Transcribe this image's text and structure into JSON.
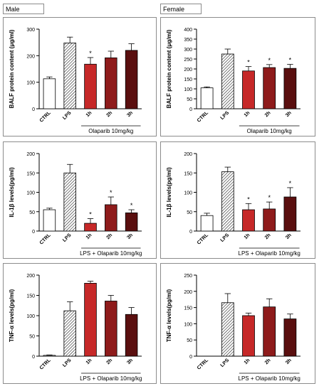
{
  "labels": {
    "male": "Male",
    "female": "Female"
  },
  "colors": {
    "ctrl": "#ffffff",
    "lps_hatch": "#222222",
    "h1": "#c62828",
    "h2": "#8e1b1b",
    "h3": "#5a0f0f",
    "axis": "#000000"
  },
  "chart_data": [
    {
      "type": "bar",
      "panel": "male-balf",
      "ylabel": "BALF protein content (μg/ml)",
      "ylim": [
        0,
        300
      ],
      "yticks": [
        0,
        100,
        200,
        300
      ],
      "categories": [
        "CTRL",
        "LPS",
        "1h",
        "2h",
        "3h"
      ],
      "values": [
        113,
        248,
        168,
        192,
        220
      ],
      "errors": [
        7,
        22,
        25,
        25,
        25
      ],
      "significance": [
        "",
        "",
        "*",
        "",
        ""
      ],
      "group_label": "Olaparib 10mg/kg"
    },
    {
      "type": "bar",
      "panel": "female-balf",
      "ylabel": "BALF protein content (μg/ml)",
      "ylim": [
        0,
        400
      ],
      "yticks": [
        0,
        50,
        100,
        150,
        200,
        250,
        300,
        350,
        400
      ],
      "categories": [
        "CTRL",
        "LPS",
        "1h",
        "2h",
        "3h"
      ],
      "values": [
        105,
        275,
        190,
        207,
        203
      ],
      "errors": [
        5,
        25,
        22,
        15,
        20
      ],
      "significance": [
        "",
        "",
        "*",
        "*",
        "*"
      ],
      "group_label": "Olaparib 10mg/kg"
    },
    {
      "type": "bar",
      "panel": "male-il1b",
      "ylabel": "IL-1β levels(pg/ml)",
      "ylim": [
        0,
        200
      ],
      "yticks": [
        0,
        50,
        100,
        150,
        200
      ],
      "categories": [
        "CTRL",
        "LPS",
        "1h",
        "2h",
        "3h"
      ],
      "values": [
        55,
        150,
        20,
        68,
        47
      ],
      "errors": [
        4,
        22,
        12,
        20,
        8
      ],
      "significance": [
        "",
        "",
        "*",
        "*",
        "*"
      ],
      "group_label": "LPS + Olaparib 10mg/kg"
    },
    {
      "type": "bar",
      "panel": "female-il1b",
      "ylabel": "IL-1β levels(pg/ml)",
      "ylim": [
        0,
        200
      ],
      "yticks": [
        0,
        50,
        100,
        150,
        200
      ],
      "categories": [
        "CTRL",
        "LPS",
        "1h",
        "2h",
        "3h"
      ],
      "values": [
        40,
        153,
        55,
        57,
        88
      ],
      "errors": [
        6,
        12,
        16,
        18,
        24
      ],
      "significance": [
        "",
        "",
        "*",
        "*",
        "*"
      ],
      "group_label": "LPS + Olaparib 10mg/kg"
    },
    {
      "type": "bar",
      "panel": "male-tnf",
      "ylabel": "TNF-α levels(pg/ml)",
      "ylim": [
        0,
        200
      ],
      "yticks": [
        0,
        50,
        100,
        150,
        200
      ],
      "categories": [
        "CTRL",
        "LPS",
        "1h",
        "2h",
        "3h"
      ],
      "values": [
        2,
        112,
        180,
        136,
        103
      ],
      "errors": [
        1,
        22,
        5,
        14,
        17
      ],
      "significance": [
        "",
        "",
        "",
        "",
        ""
      ],
      "group_label": "LPS + Olaparib 10mg/kg"
    },
    {
      "type": "bar",
      "panel": "female-tnf",
      "ylabel": "TNF-α levels(pg/ml)",
      "ylim": [
        0,
        250
      ],
      "yticks": [
        0,
        50,
        100,
        150,
        200,
        250
      ],
      "categories": [
        "CTRL",
        "LPS",
        "1h",
        "2h",
        "3h"
      ],
      "values": [
        0,
        165,
        125,
        152,
        115
      ],
      "errors": [
        0,
        28,
        8,
        25,
        15
      ],
      "significance": [
        "",
        "",
        "",
        "",
        ""
      ],
      "group_label": "LPS + Olaparib 10mg/kg"
    }
  ]
}
